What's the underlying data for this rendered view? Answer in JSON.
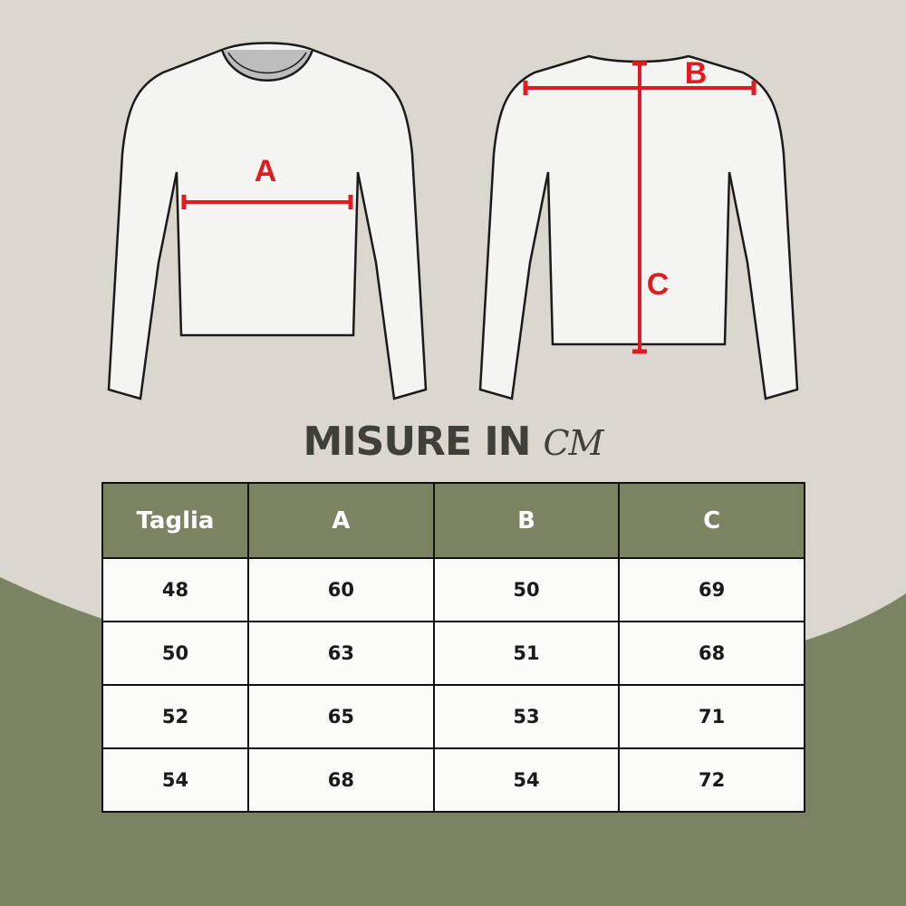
{
  "diagram": {
    "front_label": "A",
    "back_labels": [
      "B",
      "C"
    ],
    "measure_color": "#e11b22"
  },
  "title": {
    "text": "MISURE IN",
    "unit": "CM"
  },
  "colors": {
    "background": "#dcd7ce",
    "accent_green": "#7a8463"
  },
  "table": {
    "headers": [
      "Taglia",
      "A",
      "B",
      "C"
    ],
    "rows": [
      [
        "48",
        "60",
        "50",
        "69"
      ],
      [
        "50",
        "63",
        "51",
        "68"
      ],
      [
        "52",
        "65",
        "53",
        "71"
      ],
      [
        "54",
        "68",
        "54",
        "72"
      ]
    ]
  }
}
